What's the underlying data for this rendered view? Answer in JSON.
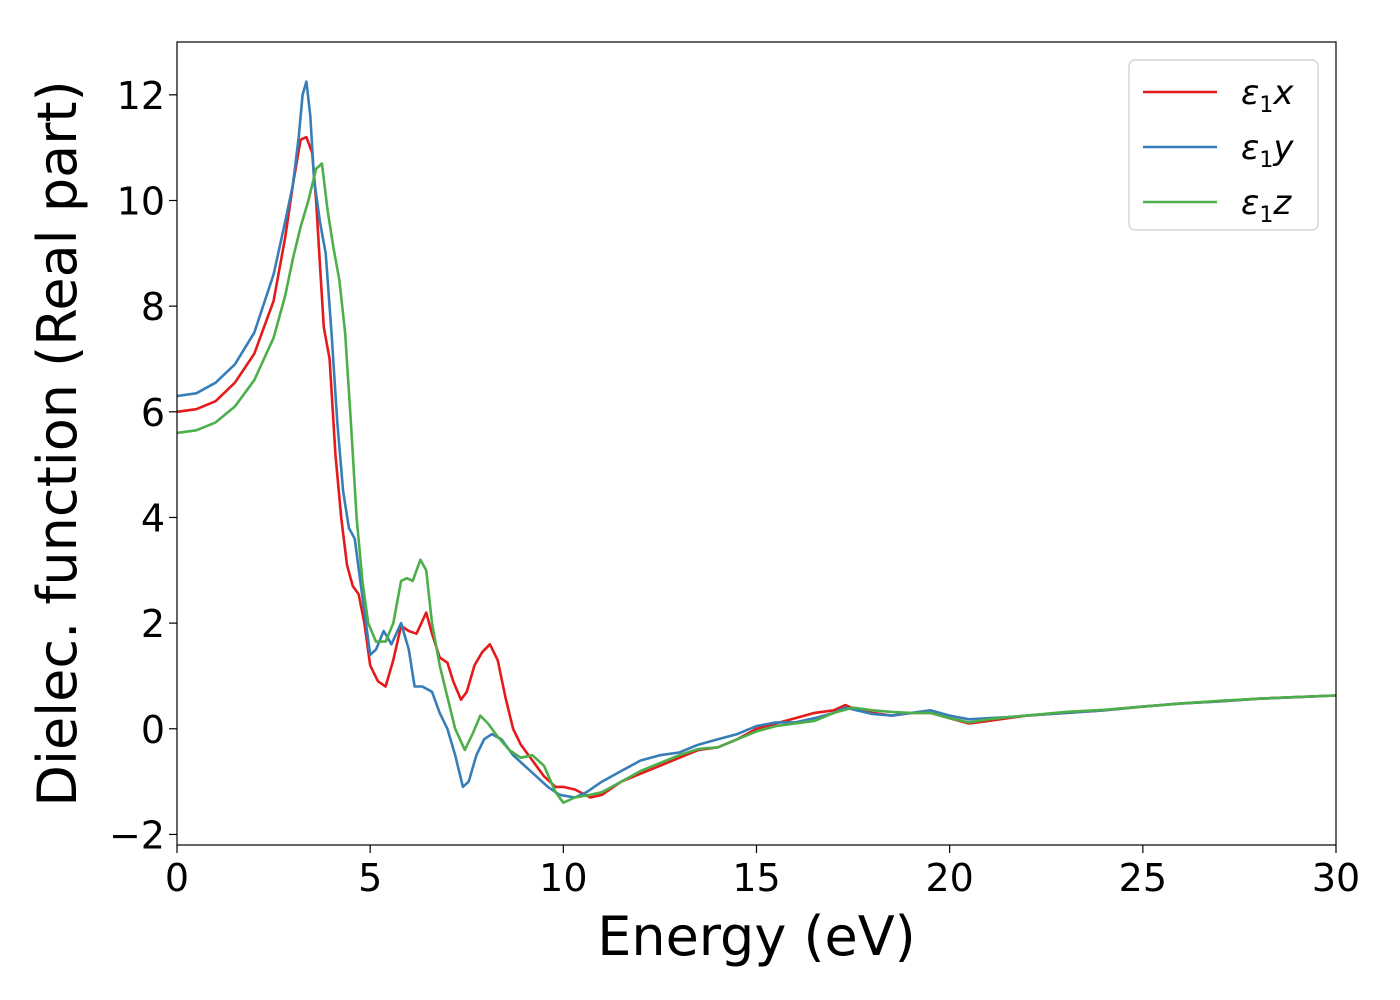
{
  "chart_data": {
    "type": "line",
    "title": "",
    "xlabel": "Energy (eV)",
    "ylabel": "Dielec. function (Real part)",
    "xlim": [
      0,
      30
    ],
    "ylim": [
      -2.2,
      13.0
    ],
    "xticks": [
      0,
      5,
      10,
      15,
      20,
      25,
      30
    ],
    "xtick_labels": [
      "0",
      "5",
      "10",
      "15",
      "20",
      "25",
      "30"
    ],
    "yticks": [
      -2,
      0,
      2,
      4,
      6,
      8,
      10,
      12
    ],
    "ytick_labels": [
      "−2",
      "0",
      "2",
      "4",
      "6",
      "8",
      "10",
      "12"
    ],
    "grid": false,
    "legend_position": "top-right",
    "series": [
      {
        "name": "ε1x",
        "legend_base": "ε",
        "legend_sub": "1",
        "legend_var": "x",
        "color": "#e41a1c",
        "points": [
          [
            0,
            6.0
          ],
          [
            0.5,
            6.05
          ],
          [
            1.0,
            6.2
          ],
          [
            1.5,
            6.55
          ],
          [
            2.0,
            7.1
          ],
          [
            2.5,
            8.1
          ],
          [
            2.8,
            9.3
          ],
          [
            3.0,
            10.3
          ],
          [
            3.2,
            11.15
          ],
          [
            3.35,
            11.2
          ],
          [
            3.5,
            10.9
          ],
          [
            3.6,
            10.0
          ],
          [
            3.7,
            8.8
          ],
          [
            3.8,
            7.6
          ],
          [
            3.95,
            7.0
          ],
          [
            4.1,
            5.2
          ],
          [
            4.25,
            4.0
          ],
          [
            4.4,
            3.1
          ],
          [
            4.55,
            2.7
          ],
          [
            4.7,
            2.55
          ],
          [
            4.85,
            2.0
          ],
          [
            5.0,
            1.2
          ],
          [
            5.2,
            0.9
          ],
          [
            5.4,
            0.8
          ],
          [
            5.6,
            1.3
          ],
          [
            5.8,
            1.95
          ],
          [
            6.0,
            1.85
          ],
          [
            6.2,
            1.8
          ],
          [
            6.45,
            2.2
          ],
          [
            6.6,
            1.8
          ],
          [
            6.8,
            1.35
          ],
          [
            7.0,
            1.25
          ],
          [
            7.15,
            0.9
          ],
          [
            7.35,
            0.55
          ],
          [
            7.5,
            0.7
          ],
          [
            7.7,
            1.2
          ],
          [
            7.9,
            1.45
          ],
          [
            8.1,
            1.6
          ],
          [
            8.3,
            1.3
          ],
          [
            8.5,
            0.6
          ],
          [
            8.7,
            0.0
          ],
          [
            8.9,
            -0.3
          ],
          [
            9.2,
            -0.6
          ],
          [
            9.5,
            -0.9
          ],
          [
            9.8,
            -1.1
          ],
          [
            10.0,
            -1.1
          ],
          [
            10.3,
            -1.15
          ],
          [
            10.7,
            -1.3
          ],
          [
            11.0,
            -1.25
          ],
          [
            11.5,
            -1.0
          ],
          [
            12.0,
            -0.85
          ],
          [
            12.5,
            -0.7
          ],
          [
            13.0,
            -0.55
          ],
          [
            13.5,
            -0.4
          ],
          [
            14.0,
            -0.35
          ],
          [
            14.5,
            -0.2
          ],
          [
            15.0,
            0.0
          ],
          [
            15.5,
            0.1
          ],
          [
            16.0,
            0.2
          ],
          [
            16.5,
            0.3
          ],
          [
            17.0,
            0.35
          ],
          [
            17.3,
            0.45
          ],
          [
            17.6,
            0.35
          ],
          [
            18.0,
            0.3
          ],
          [
            18.5,
            0.25
          ],
          [
            19.0,
            0.3
          ],
          [
            19.5,
            0.3
          ],
          [
            20.0,
            0.2
          ],
          [
            20.5,
            0.1
          ],
          [
            21.0,
            0.15
          ],
          [
            21.5,
            0.2
          ],
          [
            22.0,
            0.25
          ],
          [
            23.0,
            0.3
          ],
          [
            24.0,
            0.35
          ],
          [
            25.0,
            0.42
          ],
          [
            26.0,
            0.48
          ],
          [
            27.0,
            0.52
          ],
          [
            28.0,
            0.57
          ],
          [
            29.0,
            0.6
          ],
          [
            30.0,
            0.63
          ]
        ]
      },
      {
        "name": "ε1y",
        "legend_base": "ε",
        "legend_sub": "1",
        "legend_var": "y",
        "color": "#377eb8",
        "points": [
          [
            0,
            6.3
          ],
          [
            0.5,
            6.35
          ],
          [
            1.0,
            6.55
          ],
          [
            1.5,
            6.9
          ],
          [
            2.0,
            7.5
          ],
          [
            2.5,
            8.6
          ],
          [
            2.8,
            9.6
          ],
          [
            3.0,
            10.3
          ],
          [
            3.15,
            11.2
          ],
          [
            3.25,
            12.0
          ],
          [
            3.35,
            12.25
          ],
          [
            3.45,
            11.6
          ],
          [
            3.55,
            10.4
          ],
          [
            3.7,
            9.6
          ],
          [
            3.85,
            9.0
          ],
          [
            4.0,
            7.5
          ],
          [
            4.15,
            5.8
          ],
          [
            4.3,
            4.5
          ],
          [
            4.45,
            3.8
          ],
          [
            4.6,
            3.6
          ],
          [
            4.8,
            2.5
          ],
          [
            5.0,
            1.4
          ],
          [
            5.15,
            1.5
          ],
          [
            5.35,
            1.85
          ],
          [
            5.55,
            1.6
          ],
          [
            5.8,
            2.0
          ],
          [
            6.0,
            1.5
          ],
          [
            6.15,
            0.8
          ],
          [
            6.35,
            0.8
          ],
          [
            6.6,
            0.7
          ],
          [
            6.8,
            0.3
          ],
          [
            7.0,
            0.0
          ],
          [
            7.2,
            -0.5
          ],
          [
            7.4,
            -1.1
          ],
          [
            7.55,
            -1.0
          ],
          [
            7.75,
            -0.5
          ],
          [
            7.95,
            -0.2
          ],
          [
            8.15,
            -0.1
          ],
          [
            8.4,
            -0.2
          ],
          [
            8.7,
            -0.5
          ],
          [
            9.0,
            -0.7
          ],
          [
            9.3,
            -0.9
          ],
          [
            9.6,
            -1.1
          ],
          [
            9.9,
            -1.25
          ],
          [
            10.3,
            -1.3
          ],
          [
            10.6,
            -1.2
          ],
          [
            11.0,
            -1.0
          ],
          [
            11.5,
            -0.8
          ],
          [
            12.0,
            -0.6
          ],
          [
            12.5,
            -0.5
          ],
          [
            13.0,
            -0.45
          ],
          [
            13.5,
            -0.3
          ],
          [
            14.0,
            -0.2
          ],
          [
            14.5,
            -0.1
          ],
          [
            15.0,
            0.05
          ],
          [
            15.5,
            0.12
          ],
          [
            16.0,
            0.12
          ],
          [
            16.5,
            0.2
          ],
          [
            17.0,
            0.3
          ],
          [
            17.3,
            0.4
          ],
          [
            17.6,
            0.35
          ],
          [
            18.0,
            0.28
          ],
          [
            18.5,
            0.25
          ],
          [
            19.0,
            0.3
          ],
          [
            19.5,
            0.35
          ],
          [
            20.0,
            0.25
          ],
          [
            20.5,
            0.18
          ],
          [
            21.0,
            0.2
          ],
          [
            21.5,
            0.22
          ],
          [
            22.0,
            0.25
          ],
          [
            23.0,
            0.3
          ],
          [
            24.0,
            0.35
          ],
          [
            25.0,
            0.42
          ],
          [
            26.0,
            0.48
          ],
          [
            27.0,
            0.52
          ],
          [
            28.0,
            0.57
          ],
          [
            29.0,
            0.6
          ],
          [
            30.0,
            0.63
          ]
        ]
      },
      {
        "name": "ε1z",
        "legend_base": "ε",
        "legend_sub": "1",
        "legend_var": "z",
        "color": "#4daf4a",
        "points": [
          [
            0,
            5.6
          ],
          [
            0.5,
            5.65
          ],
          [
            1.0,
            5.8
          ],
          [
            1.5,
            6.1
          ],
          [
            2.0,
            6.6
          ],
          [
            2.5,
            7.4
          ],
          [
            2.8,
            8.2
          ],
          [
            3.0,
            8.9
          ],
          [
            3.2,
            9.5
          ],
          [
            3.4,
            10.0
          ],
          [
            3.6,
            10.6
          ],
          [
            3.75,
            10.7
          ],
          [
            3.9,
            9.8
          ],
          [
            4.05,
            9.1
          ],
          [
            4.2,
            8.5
          ],
          [
            4.35,
            7.5
          ],
          [
            4.5,
            5.8
          ],
          [
            4.65,
            4.0
          ],
          [
            4.8,
            2.8
          ],
          [
            4.95,
            2.0
          ],
          [
            5.15,
            1.65
          ],
          [
            5.4,
            1.65
          ],
          [
            5.6,
            2.0
          ],
          [
            5.8,
            2.8
          ],
          [
            5.95,
            2.85
          ],
          [
            6.1,
            2.8
          ],
          [
            6.3,
            3.2
          ],
          [
            6.45,
            3.0
          ],
          [
            6.6,
            2.0
          ],
          [
            6.8,
            1.2
          ],
          [
            7.0,
            0.6
          ],
          [
            7.2,
            0.0
          ],
          [
            7.45,
            -0.4
          ],
          [
            7.65,
            -0.1
          ],
          [
            7.85,
            0.25
          ],
          [
            8.05,
            0.1
          ],
          [
            8.3,
            -0.15
          ],
          [
            8.6,
            -0.4
          ],
          [
            8.9,
            -0.55
          ],
          [
            9.2,
            -0.5
          ],
          [
            9.5,
            -0.7
          ],
          [
            9.8,
            -1.2
          ],
          [
            10.0,
            -1.4
          ],
          [
            10.3,
            -1.3
          ],
          [
            10.7,
            -1.25
          ],
          [
            11.0,
            -1.2
          ],
          [
            11.5,
            -1.0
          ],
          [
            12.0,
            -0.8
          ],
          [
            12.5,
            -0.65
          ],
          [
            13.0,
            -0.5
          ],
          [
            13.5,
            -0.38
          ],
          [
            14.0,
            -0.35
          ],
          [
            14.5,
            -0.2
          ],
          [
            15.0,
            -0.05
          ],
          [
            15.5,
            0.05
          ],
          [
            16.0,
            0.1
          ],
          [
            16.5,
            0.15
          ],
          [
            17.0,
            0.3
          ],
          [
            17.5,
            0.4
          ],
          [
            18.0,
            0.35
          ],
          [
            18.5,
            0.32
          ],
          [
            19.0,
            0.3
          ],
          [
            19.5,
            0.3
          ],
          [
            20.0,
            0.2
          ],
          [
            20.5,
            0.12
          ],
          [
            21.0,
            0.18
          ],
          [
            21.5,
            0.22
          ],
          [
            22.0,
            0.25
          ],
          [
            23.0,
            0.32
          ],
          [
            24.0,
            0.36
          ],
          [
            25.0,
            0.42
          ],
          [
            26.0,
            0.48
          ],
          [
            27.0,
            0.53
          ],
          [
            28.0,
            0.57
          ],
          [
            29.0,
            0.6
          ],
          [
            30.0,
            0.63
          ]
        ]
      }
    ]
  }
}
